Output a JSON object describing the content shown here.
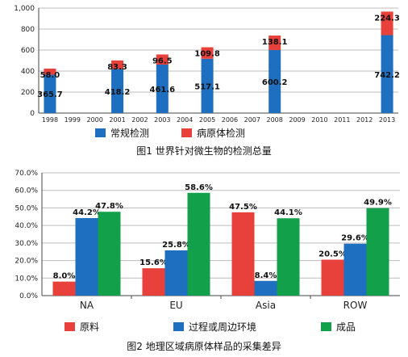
{
  "figure1": {
    "caption": "图1  世界针对微生物的检测总量",
    "chart_data": {
      "type": "bar",
      "stacked": true,
      "categories": [
        "1998",
        "1999",
        "2000",
        "2001",
        "2002",
        "2003",
        "2004",
        "2005",
        "2006",
        "2007",
        "2008",
        "2009",
        "2010",
        "2011",
        "2012",
        "2013"
      ],
      "series": [
        {
          "name": "常规检测",
          "color": "#1f6fc0",
          "values": [
            365.7,
            null,
            null,
            418.2,
            null,
            461.6,
            null,
            517.1,
            null,
            null,
            600.2,
            null,
            null,
            null,
            null,
            742.2
          ],
          "labels": [
            "365.7",
            null,
            null,
            "418.2",
            null,
            "461.6",
            null,
            "517.1",
            null,
            null,
            "600.2",
            null,
            null,
            null,
            null,
            "742.2"
          ]
        },
        {
          "name": "病原体检测",
          "color": "#e8403a",
          "values": [
            58.0,
            null,
            null,
            83.3,
            null,
            96.5,
            null,
            109.8,
            null,
            null,
            138.1,
            null,
            null,
            null,
            null,
            224.3
          ],
          "labels": [
            "58.0",
            null,
            null,
            "83.3",
            null,
            "96.5",
            null,
            "109.8",
            null,
            null,
            "138.1",
            null,
            null,
            null,
            null,
            "224.3"
          ]
        }
      ],
      "ylim": [
        0,
        1000
      ],
      "yticks": [
        0,
        200,
        400,
        600,
        800,
        1000
      ],
      "ytick_labels": [
        "0",
        "200",
        "400",
        "600",
        "800",
        "1,000"
      ],
      "grid": true,
      "legend_position": "bottom"
    }
  },
  "figure2": {
    "caption": "图2  地理区域病原体样品的采集差异",
    "chart_data": {
      "type": "bar",
      "categories": [
        "NA",
        "EU",
        "Asia",
        "ROW"
      ],
      "series": [
        {
          "name": "原料",
          "color": "#e8403a",
          "values": [
            8.0,
            15.6,
            47.5,
            20.5
          ],
          "labels": [
            "8.0%",
            "15.6%",
            "47.5%",
            "20.5%"
          ]
        },
        {
          "name": "过程或周边环境",
          "color": "#1f6fc0",
          "values": [
            44.2,
            25.8,
            8.4,
            29.6
          ],
          "labels": [
            "44.2%",
            "25.8%",
            "8.4%",
            "29.6%"
          ]
        },
        {
          "name": "成品",
          "color": "#12a04a",
          "values": [
            47.8,
            58.6,
            44.1,
            49.9
          ],
          "labels": [
            "47.8%",
            "58.6%",
            "44.1%",
            "49.9%"
          ]
        }
      ],
      "ylim": [
        0,
        70
      ],
      "yticks": [
        0,
        10,
        20,
        30,
        40,
        50,
        60,
        70
      ],
      "ytick_labels": [
        "0.0%",
        "10.0%",
        "20.0%",
        "30.0%",
        "40.0%",
        "50.0%",
        "60.0%",
        "70.0%"
      ],
      "grid": true,
      "legend_position": "bottom"
    }
  }
}
